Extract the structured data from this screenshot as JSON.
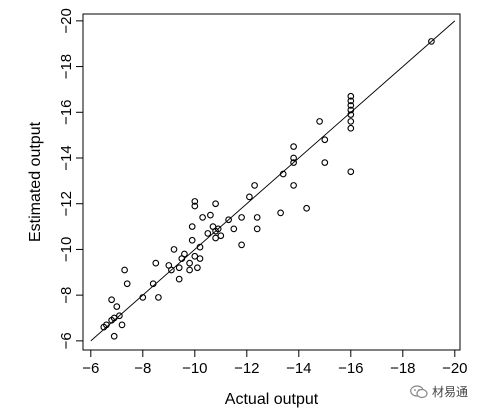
{
  "chart_data": {
    "type": "scatter",
    "xlabel": "Actual output",
    "ylabel": "Estimated output",
    "xlim": [
      -5.7,
      -20.2
    ],
    "ylim": [
      -5.6,
      -20.3
    ],
    "xticks": [
      -6,
      -8,
      -10,
      -12,
      -14,
      -16,
      -18,
      -20
    ],
    "yticks": [
      -6,
      -8,
      -10,
      -12,
      -14,
      -16,
      -18,
      -20
    ],
    "reference_line": {
      "from": [
        -6,
        -6
      ],
      "to": [
        -20,
        -20
      ]
    },
    "grid": false,
    "legend": "none",
    "points": [
      [
        -6.5,
        -6.6
      ],
      [
        -6.6,
        -6.7
      ],
      [
        -6.8,
        -6.9
      ],
      [
        -6.9,
        -7.0
      ],
      [
        -7.1,
        -7.1
      ],
      [
        -7.2,
        -6.7
      ],
      [
        -6.9,
        -6.2
      ],
      [
        -6.8,
        -7.8
      ],
      [
        -7.0,
        -7.5
      ],
      [
        -7.4,
        -8.5
      ],
      [
        -7.3,
        -9.1
      ],
      [
        -8.0,
        -7.9
      ],
      [
        -8.6,
        -7.9
      ],
      [
        -8.4,
        -8.5
      ],
      [
        -8.5,
        -9.4
      ],
      [
        -9.0,
        -9.3
      ],
      [
        -9.1,
        -9.1
      ],
      [
        -9.2,
        -10.0
      ],
      [
        -9.4,
        -9.2
      ],
      [
        -9.5,
        -9.6
      ],
      [
        -9.6,
        -9.8
      ],
      [
        -9.4,
        -8.7
      ],
      [
        -9.8,
        -9.1
      ],
      [
        -9.8,
        -9.4
      ],
      [
        -9.9,
        -10.4
      ],
      [
        -9.9,
        -11.0
      ],
      [
        -10.0,
        -9.7
      ],
      [
        -10.1,
        -9.2
      ],
      [
        -10.2,
        -9.6
      ],
      [
        -10.0,
        -12.1
      ],
      [
        -10.0,
        -11.9
      ],
      [
        -10.2,
        -10.1
      ],
      [
        -10.3,
        -11.4
      ],
      [
        -10.6,
        -11.5
      ],
      [
        -10.5,
        -10.7
      ],
      [
        -10.7,
        -11.0
      ],
      [
        -10.8,
        -10.8
      ],
      [
        -10.8,
        -10.5
      ],
      [
        -10.9,
        -10.9
      ],
      [
        -10.8,
        -12.0
      ],
      [
        -11.0,
        -10.6
      ],
      [
        -11.3,
        -11.3
      ],
      [
        -11.5,
        -10.9
      ],
      [
        -11.8,
        -10.2
      ],
      [
        -11.8,
        -11.4
      ],
      [
        -12.1,
        -12.3
      ],
      [
        -12.3,
        -12.8
      ],
      [
        -12.4,
        -10.9
      ],
      [
        -12.4,
        -11.4
      ],
      [
        -13.3,
        -11.6
      ],
      [
        -13.4,
        -13.3
      ],
      [
        -13.8,
        -13.8
      ],
      [
        -13.8,
        -14.0
      ],
      [
        -13.8,
        -14.5
      ],
      [
        -13.8,
        -12.8
      ],
      [
        -14.3,
        -11.8
      ],
      [
        -14.8,
        -15.6
      ],
      [
        -15.0,
        -14.8
      ],
      [
        -15.0,
        -13.8
      ],
      [
        -16.0,
        -15.3
      ],
      [
        -16.0,
        -15.6
      ],
      [
        -16.0,
        -15.9
      ],
      [
        -16.0,
        -16.1
      ],
      [
        -16.0,
        -16.3
      ],
      [
        -16.0,
        -16.5
      ],
      [
        -16.0,
        -16.7
      ],
      [
        -16.0,
        -13.4
      ],
      [
        -19.1,
        -19.1
      ]
    ]
  },
  "watermark": {
    "text": "材易通"
  }
}
